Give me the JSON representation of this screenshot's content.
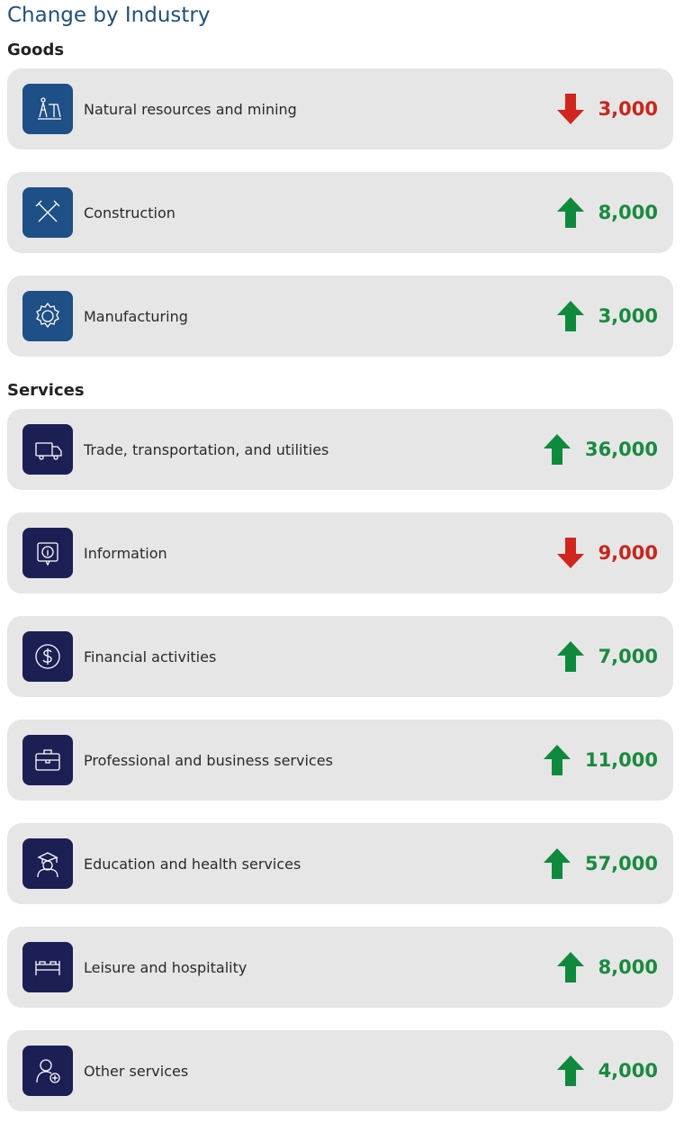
{
  "title": "Change by Industry",
  "sections": [
    {
      "heading": "Goods",
      "items": [
        {
          "label": "Natural resources and mining",
          "value": "3,000",
          "direction": "down"
        },
        {
          "label": "Construction",
          "value": "8,000",
          "direction": "up"
        },
        {
          "label": "Manufacturing",
          "value": "3,000",
          "direction": "up"
        }
      ]
    },
    {
      "heading": "Services",
      "items": [
        {
          "label": "Trade, transportation, and utilities",
          "value": "36,000",
          "direction": "up"
        },
        {
          "label": "Information",
          "value": "9,000",
          "direction": "down"
        },
        {
          "label": "Financial activities",
          "value": "7,000",
          "direction": "up"
        },
        {
          "label": "Professional and business services",
          "value": "11,000",
          "direction": "up"
        },
        {
          "label": "Education and health services",
          "value": "57,000",
          "direction": "up"
        },
        {
          "label": "Leisure and hospitality",
          "value": "8,000",
          "direction": "up"
        },
        {
          "label": "Other services",
          "value": "4,000",
          "direction": "up"
        }
      ]
    }
  ]
}
